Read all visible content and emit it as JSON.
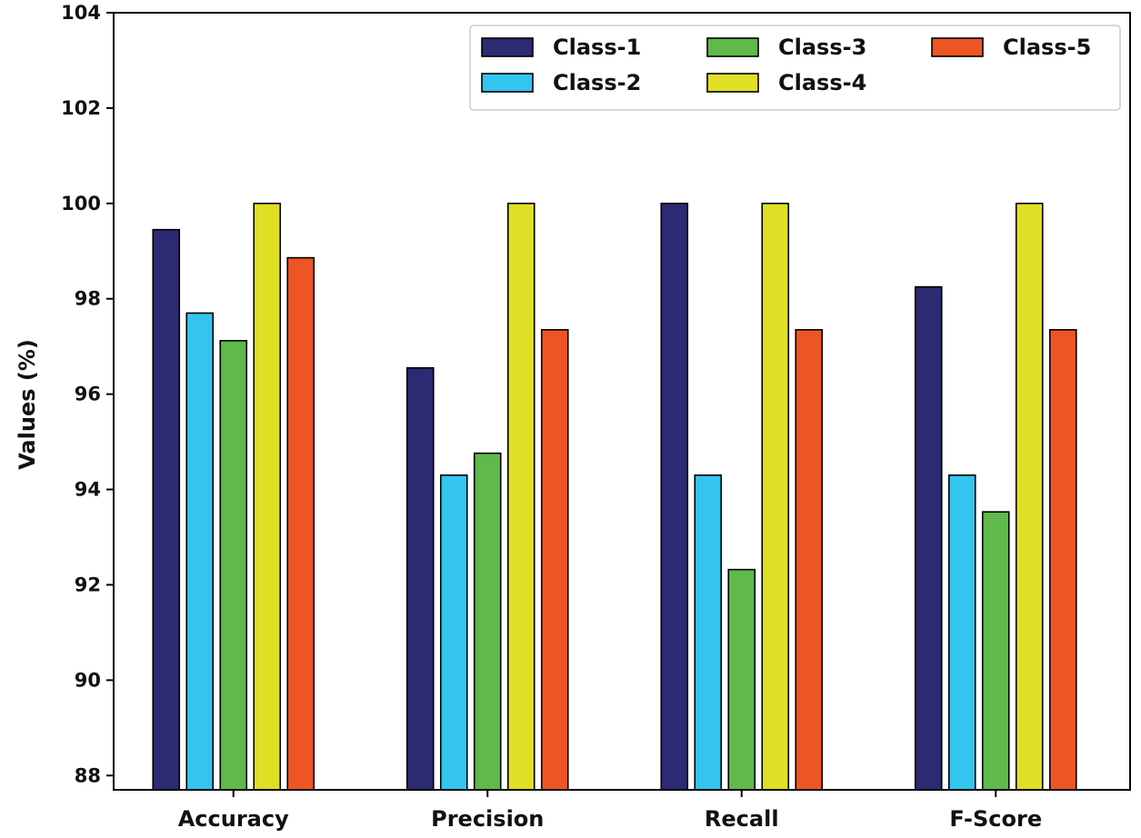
{
  "chart_data": {
    "type": "bar",
    "title": "",
    "xlabel": "",
    "ylabel": "Values (%)",
    "ylim": [
      87.7,
      104
    ],
    "yticks": [
      88,
      90,
      92,
      94,
      96,
      98,
      100,
      102,
      104
    ],
    "grid": false,
    "legend_position": "top-right",
    "categories": [
      "Accuracy",
      "Precision",
      "Recall",
      "F-Score"
    ],
    "series": [
      {
        "name": "Class-1",
        "color": "#2b2a72",
        "values": [
          99.45,
          96.55,
          100.0,
          98.25
        ]
      },
      {
        "name": "Class-2",
        "color": "#33c4f0",
        "values": [
          97.7,
          94.3,
          94.3,
          94.3
        ]
      },
      {
        "name": "Class-3",
        "color": "#5fb94b",
        "values": [
          97.12,
          94.76,
          92.32,
          93.53
        ]
      },
      {
        "name": "Class-4",
        "color": "#dfdf26",
        "values": [
          100.0,
          100.0,
          100.0,
          100.0
        ]
      },
      {
        "name": "Class-5",
        "color": "#ee5524",
        "values": [
          98.86,
          97.35,
          97.35,
          97.35
        ]
      }
    ]
  }
}
